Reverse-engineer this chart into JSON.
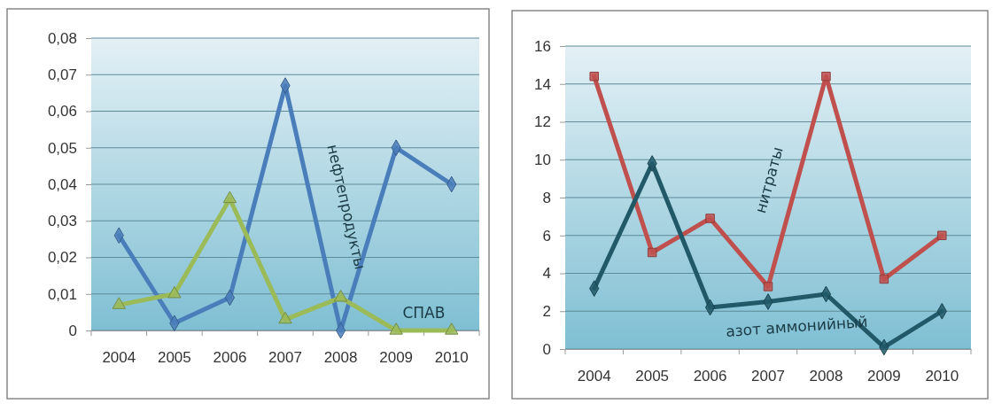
{
  "chart_data": [
    {
      "type": "line",
      "categories": [
        "2004",
        "2005",
        "2006",
        "2007",
        "2008",
        "2009",
        "2010"
      ],
      "ylim": [
        0,
        0.08
      ],
      "yticks": [
        0,
        {
          "value": 0.01,
          "label": "0,01"
        },
        {
          "value": 0.02,
          "label": "0,02"
        },
        {
          "value": 0.03,
          "label": "0,03"
        },
        {
          "value": 0.04,
          "label": "0,04"
        },
        {
          "value": 0.05,
          "label": "0,05"
        },
        {
          "value": 0.06,
          "label": "0,06"
        },
        {
          "value": 0.07,
          "label": "0,07"
        },
        {
          "value": 0.08,
          "label": "0,08"
        }
      ],
      "grid": "y",
      "legend": false,
      "series": [
        {
          "name": "нефтепродукты",
          "color": "#4a7ebb",
          "marker": "diamond",
          "values": [
            0.026,
            0.002,
            0.009,
            0.067,
            0,
            0.05,
            0.04
          ]
        },
        {
          "name": "СПАВ",
          "color": "#9bbb59",
          "marker": "triangle",
          "values": [
            0.007,
            0.01,
            0.036,
            0.003,
            0.009,
            0,
            0
          ]
        }
      ]
    },
    {
      "type": "line",
      "categories": [
        "2004",
        "2005",
        "2006",
        "2007",
        "2008",
        "2009",
        "2010"
      ],
      "ylim": [
        0,
        16
      ],
      "yticks": [
        0,
        2,
        4,
        6,
        8,
        10,
        12,
        14,
        16
      ],
      "grid": "y",
      "legend": false,
      "series": [
        {
          "name": "нитраты",
          "color": "#c0504d",
          "marker": "square",
          "values": [
            14.4,
            5.1,
            6.9,
            3.3,
            14.4,
            3.7,
            6.0
          ]
        },
        {
          "name": "азот аммонийный",
          "color": "#215968",
          "marker": "diamond",
          "values": [
            3.2,
            9.8,
            2.2,
            2.5,
            2.9,
            0.1,
            2.0
          ]
        }
      ]
    }
  ]
}
